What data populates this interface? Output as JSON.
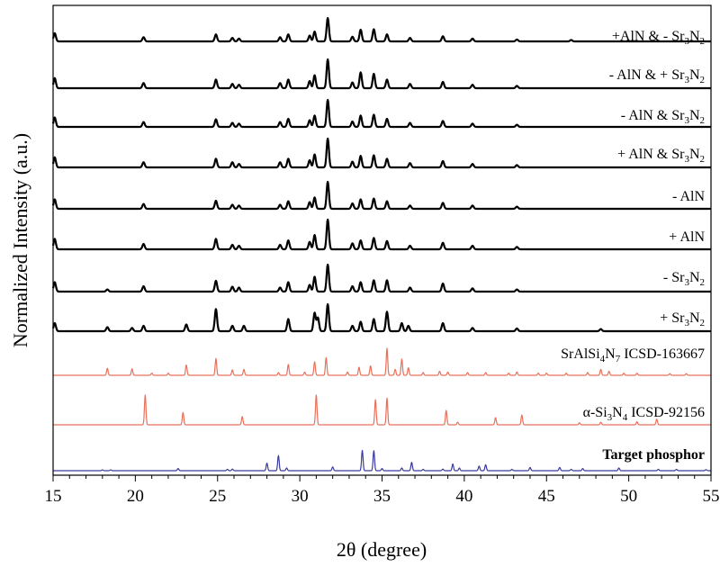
{
  "chart_data": {
    "type": "line",
    "xlabel": "2θ (degree)",
    "ylabel": "Normalized Intensity (a.u.)",
    "xlim": [
      15,
      55
    ],
    "xticks": [
      "15",
      "20",
      "25",
      "30",
      "35",
      "40",
      "45",
      "50",
      "55"
    ],
    "grid": false,
    "legend": "none",
    "colors": {
      "measured": "#000000",
      "srAlSi4N7": "#e8705a",
      "si3n4": "#e8705a",
      "target": "#3a3aa0"
    },
    "series": [
      {
        "name": "+AlN & - Sr3N2",
        "label_text": "+AlN & - Sr",
        "sub1": "3",
        "mid": "N",
        "sub2": "2",
        "color": "#000000",
        "peaks": [
          [
            15.1,
            0.35
          ],
          [
            20.5,
            0.18
          ],
          [
            24.9,
            0.3
          ],
          [
            25.9,
            0.15
          ],
          [
            26.3,
            0.12
          ],
          [
            28.8,
            0.18
          ],
          [
            29.3,
            0.3
          ],
          [
            30.6,
            0.25
          ],
          [
            30.9,
            0.42
          ],
          [
            31.7,
            1.0
          ],
          [
            33.2,
            0.2
          ],
          [
            33.7,
            0.5
          ],
          [
            34.5,
            0.52
          ],
          [
            35.3,
            0.3
          ],
          [
            36.7,
            0.15
          ],
          [
            38.7,
            0.22
          ],
          [
            40.5,
            0.12
          ],
          [
            43.2,
            0.08
          ],
          [
            46.5,
            0.06
          ]
        ]
      },
      {
        "name": "- AlN & + Sr3N2",
        "label_text": "- AlN & + Sr",
        "sub1": "3",
        "mid": "N",
        "sub2": "2",
        "color": "#000000",
        "peaks": [
          [
            15.1,
            0.35
          ],
          [
            20.5,
            0.18
          ],
          [
            24.9,
            0.3
          ],
          [
            25.9,
            0.15
          ],
          [
            26.3,
            0.12
          ],
          [
            28.8,
            0.18
          ],
          [
            29.3,
            0.3
          ],
          [
            30.6,
            0.25
          ],
          [
            30.9,
            0.45
          ],
          [
            31.7,
            1.0
          ],
          [
            33.2,
            0.2
          ],
          [
            33.7,
            0.55
          ],
          [
            34.5,
            0.5
          ],
          [
            35.3,
            0.3
          ],
          [
            36.7,
            0.15
          ],
          [
            38.7,
            0.22
          ],
          [
            40.5,
            0.12
          ],
          [
            43.2,
            0.08
          ]
        ]
      },
      {
        "name": "- AlN & Sr3N2",
        "label_text": "- AlN & Sr",
        "sub1": "3",
        "mid": "N",
        "sub2": "2",
        "color": "#000000",
        "peaks": [
          [
            15.1,
            0.35
          ],
          [
            20.5,
            0.18
          ],
          [
            24.9,
            0.28
          ],
          [
            25.9,
            0.15
          ],
          [
            26.3,
            0.12
          ],
          [
            28.8,
            0.18
          ],
          [
            29.3,
            0.3
          ],
          [
            30.6,
            0.25
          ],
          [
            30.9,
            0.42
          ],
          [
            31.7,
            1.0
          ],
          [
            33.2,
            0.2
          ],
          [
            33.7,
            0.42
          ],
          [
            34.5,
            0.45
          ],
          [
            35.3,
            0.3
          ],
          [
            36.7,
            0.15
          ],
          [
            38.7,
            0.22
          ],
          [
            40.5,
            0.12
          ],
          [
            43.2,
            0.08
          ]
        ]
      },
      {
        "name": "+ AlN & Sr3N2",
        "label_text": "+ AlN & Sr",
        "sub1": "3",
        "mid": "N",
        "sub2": "2",
        "color": "#000000",
        "peaks": [
          [
            15.1,
            0.35
          ],
          [
            20.5,
            0.18
          ],
          [
            24.9,
            0.3
          ],
          [
            25.9,
            0.18
          ],
          [
            26.3,
            0.12
          ],
          [
            28.8,
            0.18
          ],
          [
            29.3,
            0.3
          ],
          [
            30.6,
            0.25
          ],
          [
            30.9,
            0.45
          ],
          [
            31.7,
            1.0
          ],
          [
            33.2,
            0.2
          ],
          [
            33.7,
            0.4
          ],
          [
            34.5,
            0.42
          ],
          [
            35.3,
            0.3
          ],
          [
            36.7,
            0.15
          ],
          [
            38.7,
            0.22
          ],
          [
            40.5,
            0.12
          ],
          [
            43.2,
            0.08
          ]
        ]
      },
      {
        "name": "- AlN",
        "label_text": "- AlN",
        "sub1": "",
        "mid": "",
        "sub2": "",
        "color": "#000000",
        "peaks": [
          [
            15.1,
            0.35
          ],
          [
            20.5,
            0.18
          ],
          [
            24.9,
            0.3
          ],
          [
            25.9,
            0.15
          ],
          [
            26.3,
            0.12
          ],
          [
            28.8,
            0.15
          ],
          [
            29.3,
            0.28
          ],
          [
            30.6,
            0.25
          ],
          [
            30.9,
            0.42
          ],
          [
            31.7,
            1.0
          ],
          [
            33.2,
            0.2
          ],
          [
            33.7,
            0.35
          ],
          [
            34.5,
            0.38
          ],
          [
            35.3,
            0.28
          ],
          [
            36.7,
            0.12
          ],
          [
            38.7,
            0.22
          ],
          [
            40.5,
            0.12
          ],
          [
            43.2,
            0.08
          ]
        ]
      },
      {
        "name": "+ AlN",
        "label_text": "+ AlN",
        "sub1": "",
        "mid": "",
        "sub2": "",
        "color": "#000000",
        "peaks": [
          [
            15.1,
            0.35
          ],
          [
            20.5,
            0.18
          ],
          [
            24.9,
            0.35
          ],
          [
            25.9,
            0.15
          ],
          [
            26.3,
            0.12
          ],
          [
            28.8,
            0.15
          ],
          [
            29.3,
            0.3
          ],
          [
            30.6,
            0.25
          ],
          [
            30.9,
            0.48
          ],
          [
            31.7,
            1.0
          ],
          [
            33.2,
            0.2
          ],
          [
            33.7,
            0.3
          ],
          [
            34.5,
            0.38
          ],
          [
            35.3,
            0.28
          ],
          [
            36.7,
            0.12
          ],
          [
            38.7,
            0.22
          ],
          [
            40.5,
            0.12
          ],
          [
            43.2,
            0.08
          ]
        ]
      },
      {
        "name": "- Sr3N2",
        "label_text": "- Sr",
        "sub1": "3",
        "mid": "N",
        "sub2": "2",
        "color": "#000000",
        "peaks": [
          [
            15.1,
            0.35
          ],
          [
            18.3,
            0.08
          ],
          [
            20.5,
            0.2
          ],
          [
            24.9,
            0.4
          ],
          [
            25.9,
            0.18
          ],
          [
            26.3,
            0.15
          ],
          [
            28.8,
            0.15
          ],
          [
            29.3,
            0.35
          ],
          [
            30.6,
            0.25
          ],
          [
            30.9,
            0.55
          ],
          [
            31.7,
            1.0
          ],
          [
            33.2,
            0.2
          ],
          [
            33.7,
            0.35
          ],
          [
            34.5,
            0.42
          ],
          [
            35.3,
            0.42
          ],
          [
            36.7,
            0.15
          ],
          [
            38.7,
            0.3
          ],
          [
            40.5,
            0.12
          ],
          [
            43.2,
            0.08
          ]
        ]
      },
      {
        "name": "+ Sr3N2",
        "label_text": "+ Sr",
        "sub1": "3",
        "mid": "N",
        "sub2": "2",
        "color": "#000000",
        "peaks": [
          [
            15.1,
            0.3
          ],
          [
            18.3,
            0.15
          ],
          [
            19.8,
            0.12
          ],
          [
            20.5,
            0.2
          ],
          [
            23.1,
            0.25
          ],
          [
            24.9,
            0.82
          ],
          [
            25.9,
            0.2
          ],
          [
            26.6,
            0.2
          ],
          [
            29.3,
            0.45
          ],
          [
            30.9,
            0.68
          ],
          [
            31.1,
            0.5
          ],
          [
            31.7,
            1.0
          ],
          [
            33.2,
            0.2
          ],
          [
            33.7,
            0.35
          ],
          [
            34.5,
            0.45
          ],
          [
            35.3,
            0.72
          ],
          [
            36.2,
            0.3
          ],
          [
            36.6,
            0.2
          ],
          [
            38.7,
            0.3
          ],
          [
            40.5,
            0.12
          ],
          [
            43.2,
            0.1
          ],
          [
            48.3,
            0.08
          ]
        ]
      },
      {
        "name": "SrAlSi4N7 ICSD-163667",
        "label_text": "SrAlSi",
        "sub1": "4",
        "mid": "N",
        "sub2": "7",
        "tail": " ICSD-163667",
        "color": "#e8705a",
        "peaks": [
          [
            18.3,
            0.26
          ],
          [
            19.8,
            0.24
          ],
          [
            21.0,
            0.08
          ],
          [
            22.0,
            0.08
          ],
          [
            23.1,
            0.38
          ],
          [
            24.9,
            0.62
          ],
          [
            25.9,
            0.2
          ],
          [
            26.6,
            0.22
          ],
          [
            28.7,
            0.1
          ],
          [
            29.3,
            0.4
          ],
          [
            30.3,
            0.12
          ],
          [
            30.9,
            0.5
          ],
          [
            31.6,
            0.65
          ],
          [
            32.9,
            0.12
          ],
          [
            33.6,
            0.3
          ],
          [
            34.3,
            0.35
          ],
          [
            35.3,
            1.0
          ],
          [
            35.8,
            0.22
          ],
          [
            36.2,
            0.6
          ],
          [
            36.6,
            0.28
          ],
          [
            37.5,
            0.1
          ],
          [
            38.5,
            0.15
          ],
          [
            39.0,
            0.12
          ],
          [
            40.2,
            0.1
          ],
          [
            41.3,
            0.1
          ],
          [
            42.7,
            0.08
          ],
          [
            43.2,
            0.12
          ],
          [
            44.5,
            0.08
          ],
          [
            45.0,
            0.08
          ],
          [
            46.2,
            0.08
          ],
          [
            47.5,
            0.1
          ],
          [
            48.3,
            0.22
          ],
          [
            48.8,
            0.15
          ],
          [
            49.7,
            0.08
          ],
          [
            50.5,
            0.08
          ],
          [
            52.5,
            0.06
          ],
          [
            53.5,
            0.06
          ]
        ]
      },
      {
        "name": "α-Si3N4 ICSD-92156",
        "label_text": "α-Si",
        "sub1": "3",
        "mid": "N",
        "sub2": "4",
        "tail": " ICSD-92156",
        "color": "#e8705a",
        "peaks": [
          [
            20.6,
            0.58
          ],
          [
            22.9,
            0.24
          ],
          [
            26.5,
            0.16
          ],
          [
            31.0,
            0.58
          ],
          [
            34.6,
            0.49
          ],
          [
            35.3,
            0.52
          ],
          [
            38.9,
            0.28
          ],
          [
            39.6,
            0.05
          ],
          [
            41.9,
            0.14
          ],
          [
            43.5,
            0.19
          ],
          [
            47.0,
            0.04
          ],
          [
            48.3,
            0.05
          ],
          [
            50.5,
            0.06
          ],
          [
            51.7,
            0.11
          ]
        ]
      },
      {
        "name": "Target phosphor",
        "label_text": "Target phosphor",
        "sub1": "",
        "mid": "",
        "sub2": "",
        "bold": true,
        "color": "#3a3aa0",
        "peaks": [
          [
            18.0,
            0.03
          ],
          [
            18.5,
            0.03
          ],
          [
            22.6,
            0.08
          ],
          [
            25.6,
            0.05
          ],
          [
            25.9,
            0.06
          ],
          [
            28.0,
            0.28
          ],
          [
            28.7,
            0.56
          ],
          [
            29.2,
            0.1
          ],
          [
            32.0,
            0.14
          ],
          [
            33.8,
            0.75
          ],
          [
            34.5,
            0.74
          ],
          [
            35.0,
            0.08
          ],
          [
            36.2,
            0.1
          ],
          [
            36.8,
            0.31
          ],
          [
            37.5,
            0.05
          ],
          [
            38.7,
            0.06
          ],
          [
            39.3,
            0.25
          ],
          [
            39.7,
            0.1
          ],
          [
            40.9,
            0.17
          ],
          [
            41.3,
            0.22
          ],
          [
            42.9,
            0.05
          ],
          [
            44.0,
            0.12
          ],
          [
            45.8,
            0.12
          ],
          [
            46.5,
            0.05
          ],
          [
            47.2,
            0.08
          ],
          [
            49.4,
            0.1
          ],
          [
            51.8,
            0.05
          ],
          [
            52.9,
            0.05
          ],
          [
            54.7,
            0.04
          ]
        ]
      }
    ]
  }
}
